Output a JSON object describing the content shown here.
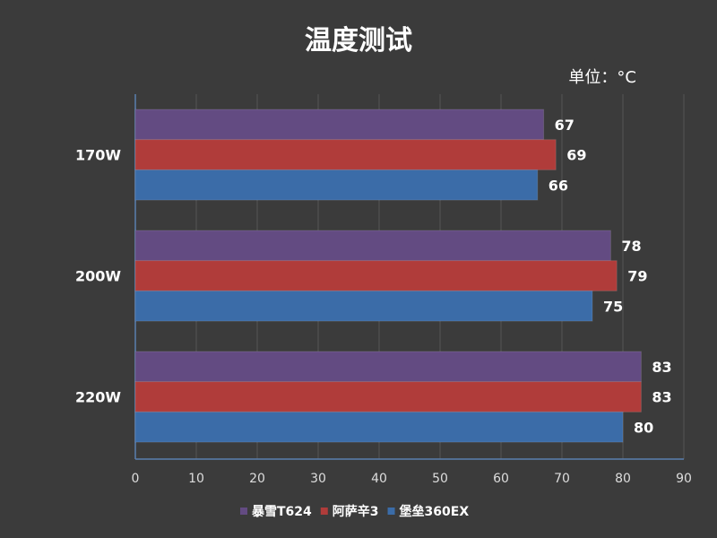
{
  "chart_data": {
    "type": "bar",
    "orientation": "horizontal",
    "title": "温度测试",
    "unit_label": "单位：°C",
    "categories": [
      "170W",
      "200W",
      "220W"
    ],
    "series": [
      {
        "name": "暴雪T624",
        "color": "#634b82",
        "values": [
          67,
          78,
          83
        ]
      },
      {
        "name": "阿萨辛3",
        "color": "#b03c3a",
        "values": [
          69,
          79,
          83
        ]
      },
      {
        "name": "堡垒360EX",
        "color": "#3b6ca8",
        "values": [
          66,
          75,
          80
        ]
      }
    ],
    "xlim": [
      0,
      90
    ],
    "xticks": [
      0,
      10,
      20,
      30,
      40,
      50,
      60,
      70,
      80,
      90
    ],
    "grid": true,
    "legend": "bottom",
    "background": "#3b3b3b"
  }
}
